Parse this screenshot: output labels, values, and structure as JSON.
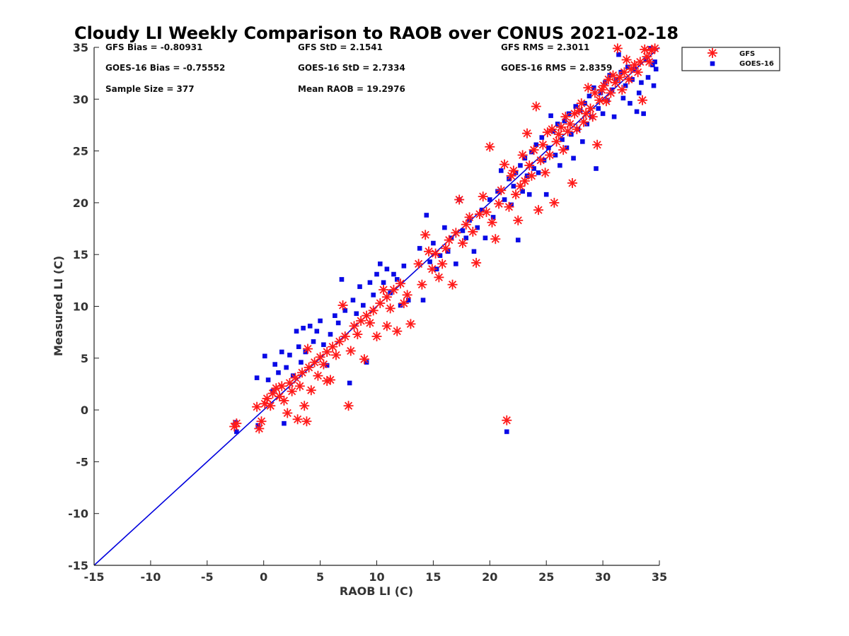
{
  "chart_data": {
    "type": "scatter",
    "title": "Cloudy LI Weekly Comparison to RAOB over CONUS 2021-02-18",
    "xlabel": "RAOB LI (C)",
    "ylabel": "Measured LI (C)",
    "xlim": [
      -15,
      35
    ],
    "ylim": [
      -15,
      35
    ],
    "xticks": [
      "-15",
      "-10",
      "-5",
      "0",
      "5",
      "10",
      "15",
      "20",
      "25",
      "30",
      "35"
    ],
    "yticks": [
      "35",
      "30",
      "25",
      "20",
      "15",
      "10",
      "5",
      "0",
      "-5",
      "-10",
      "-15"
    ],
    "grid": false,
    "legend_position": "outside-top-right",
    "colors": {
      "gfs": "#ff1a1a",
      "goes": "#0a0ae6",
      "reference_line": "#0000dd"
    },
    "reference_line": {
      "x": [
        -15,
        35
      ],
      "y": [
        -15,
        35
      ]
    },
    "stats": {
      "row1": [
        "GFS Bias = -0.80931",
        "GFS StD = 2.1541",
        "GFS RMS = 2.3011"
      ],
      "row2": [
        "GOES-16 Bias = -0.75552",
        "GOES-16 StD = 2.7334",
        "GOES-16 RMS = 2.8359"
      ],
      "row3": [
        "Sample Size = 377",
        "Mean RAOB = 19.2976"
      ]
    },
    "series": [
      {
        "name": "GFS",
        "marker": "asterisk",
        "points": [
          [
            -2.6,
            -1.6
          ],
          [
            -2.4,
            -1.3
          ],
          [
            -0.6,
            0.3
          ],
          [
            -0.4,
            -1.8
          ],
          [
            -0.2,
            -1.1
          ],
          [
            0.1,
            0.6
          ],
          [
            0.3,
            1.1
          ],
          [
            0.6,
            0.4
          ],
          [
            0.8,
            1.6
          ],
          [
            1.1,
            2.1
          ],
          [
            1.4,
            1.3
          ],
          [
            1.6,
            2.3
          ],
          [
            1.8,
            0.9
          ],
          [
            2.1,
            -0.3
          ],
          [
            2.3,
            2.6
          ],
          [
            2.5,
            1.8
          ],
          [
            2.8,
            3.1
          ],
          [
            3.0,
            -0.9
          ],
          [
            3.2,
            2.3
          ],
          [
            3.4,
            3.6
          ],
          [
            3.6,
            0.4
          ],
          [
            3.8,
            -1.1
          ],
          [
            4.0,
            4.1
          ],
          [
            4.2,
            1.9
          ],
          [
            4.5,
            4.6
          ],
          [
            4.8,
            3.3
          ],
          [
            5.0,
            5.1
          ],
          [
            5.3,
            4.4
          ],
          [
            5.6,
            5.6
          ],
          [
            5.9,
            2.9
          ],
          [
            6.1,
            6.1
          ],
          [
            6.4,
            5.3
          ],
          [
            6.7,
            6.6
          ],
          [
            7.0,
            10.1
          ],
          [
            7.2,
            7.1
          ],
          [
            7.5,
            0.4
          ],
          [
            7.7,
            5.7
          ],
          [
            8.0,
            8.1
          ],
          [
            8.3,
            7.3
          ],
          [
            8.6,
            8.6
          ],
          [
            8.9,
            4.9
          ],
          [
            9.1,
            9.1
          ],
          [
            9.4,
            8.4
          ],
          [
            9.7,
            9.6
          ],
          [
            10.0,
            7.1
          ],
          [
            10.3,
            10.3
          ],
          [
            10.6,
            11.6
          ],
          [
            10.9,
            10.9
          ],
          [
            11.2,
            9.8
          ],
          [
            11.5,
            11.6
          ],
          [
            11.8,
            7.6
          ],
          [
            12.1,
            12.2
          ],
          [
            12.4,
            10.3
          ],
          [
            12.7,
            11.1
          ],
          [
            13.0,
            8.3
          ],
          [
            13.7,
            14.1
          ],
          [
            14.0,
            12.1
          ],
          [
            14.3,
            16.9
          ],
          [
            14.6,
            15.3
          ],
          [
            14.9,
            13.6
          ],
          [
            15.2,
            15.1
          ],
          [
            15.5,
            12.8
          ],
          [
            15.8,
            14.1
          ],
          [
            16.1,
            15.6
          ],
          [
            16.4,
            16.4
          ],
          [
            16.7,
            12.1
          ],
          [
            17.0,
            17.1
          ],
          [
            17.3,
            20.3
          ],
          [
            17.6,
            16.1
          ],
          [
            17.9,
            17.9
          ],
          [
            18.2,
            18.6
          ],
          [
            18.5,
            17.2
          ],
          [
            18.8,
            14.2
          ],
          [
            19.1,
            18.9
          ],
          [
            19.4,
            20.6
          ],
          [
            19.7,
            19.1
          ],
          [
            20.0,
            25.4
          ],
          [
            20.2,
            18.1
          ],
          [
            20.5,
            16.5
          ],
          [
            20.8,
            19.9
          ],
          [
            21.0,
            21.2
          ],
          [
            21.3,
            23.7
          ],
          [
            21.5,
            -1.0
          ],
          [
            21.7,
            19.6
          ],
          [
            21.9,
            22.6
          ],
          [
            22.1,
            23.1
          ],
          [
            22.3,
            20.8
          ],
          [
            22.5,
            18.3
          ],
          [
            22.7,
            21.6
          ],
          [
            22.9,
            24.6
          ],
          [
            23.1,
            22.1
          ],
          [
            23.3,
            26.7
          ],
          [
            23.5,
            23.6
          ],
          [
            23.7,
            22.6
          ],
          [
            23.9,
            25.1
          ],
          [
            24.1,
            29.3
          ],
          [
            24.3,
            19.3
          ],
          [
            24.5,
            24.1
          ],
          [
            24.7,
            25.6
          ],
          [
            24.9,
            22.9
          ],
          [
            25.1,
            26.8
          ],
          [
            25.3,
            24.6
          ],
          [
            25.5,
            27.1
          ],
          [
            25.7,
            20.0
          ],
          [
            25.9,
            25.9
          ],
          [
            26.1,
            26.6
          ],
          [
            26.3,
            27.3
          ],
          [
            26.5,
            25.1
          ],
          [
            26.7,
            28.3
          ],
          [
            26.9,
            26.9
          ],
          [
            27.1,
            27.6
          ],
          [
            27.3,
            21.9
          ],
          [
            27.5,
            28.6
          ],
          [
            27.7,
            27.1
          ],
          [
            27.9,
            28.9
          ],
          [
            28.1,
            29.6
          ],
          [
            28.3,
            27.8
          ],
          [
            28.5,
            28.6
          ],
          [
            28.7,
            31.1
          ],
          [
            28.9,
            29.1
          ],
          [
            29.1,
            28.3
          ],
          [
            29.3,
            30.6
          ],
          [
            29.5,
            25.6
          ],
          [
            29.7,
            29.9
          ],
          [
            29.9,
            30.9
          ],
          [
            30.1,
            31.3
          ],
          [
            30.3,
            29.8
          ],
          [
            30.5,
            31.9
          ],
          [
            30.7,
            30.6
          ],
          [
            30.9,
            32.3
          ],
          [
            31.1,
            31.6
          ],
          [
            31.3,
            34.9
          ],
          [
            31.5,
            32.1
          ],
          [
            31.7,
            30.9
          ],
          [
            31.9,
            32.6
          ],
          [
            32.1,
            33.8
          ],
          [
            32.3,
            31.9
          ],
          [
            32.5,
            32.9
          ],
          [
            32.8,
            33.3
          ],
          [
            33.1,
            32.6
          ],
          [
            33.3,
            33.6
          ],
          [
            33.5,
            29.9
          ],
          [
            33.7,
            34.8
          ],
          [
            33.9,
            34.1
          ],
          [
            34.1,
            33.6
          ],
          [
            34.3,
            34.7
          ],
          [
            34.6,
            34.9
          ],
          [
            5.6,
            2.8
          ],
          [
            3.9,
            5.9
          ],
          [
            10.9,
            8.1
          ]
        ]
      },
      {
        "name": "GOES-16",
        "marker": "square",
        "points": [
          [
            -2.5,
            -1.2
          ],
          [
            -2.4,
            -2.1
          ],
          [
            -0.6,
            3.1
          ],
          [
            -0.5,
            -1.5
          ],
          [
            0.1,
            5.2
          ],
          [
            0.4,
            2.9
          ],
          [
            0.8,
            1.8
          ],
          [
            1.0,
            4.4
          ],
          [
            1.3,
            3.6
          ],
          [
            1.6,
            5.6
          ],
          [
            1.8,
            -1.3
          ],
          [
            2.0,
            4.1
          ],
          [
            2.3,
            5.3
          ],
          [
            2.6,
            3.3
          ],
          [
            2.9,
            7.6
          ],
          [
            3.1,
            6.1
          ],
          [
            3.3,
            4.6
          ],
          [
            3.5,
            7.9
          ],
          [
            3.7,
            5.6
          ],
          [
            4.1,
            8.1
          ],
          [
            4.4,
            6.6
          ],
          [
            4.7,
            7.6
          ],
          [
            5.0,
            8.6
          ],
          [
            5.3,
            6.3
          ],
          [
            5.6,
            4.3
          ],
          [
            5.9,
            7.3
          ],
          [
            6.3,
            9.1
          ],
          [
            6.6,
            8.4
          ],
          [
            6.9,
            12.6
          ],
          [
            7.2,
            9.6
          ],
          [
            7.6,
            2.6
          ],
          [
            7.9,
            10.6
          ],
          [
            8.2,
            9.3
          ],
          [
            8.5,
            11.9
          ],
          [
            8.8,
            10.1
          ],
          [
            9.1,
            4.6
          ],
          [
            9.4,
            12.3
          ],
          [
            9.7,
            11.1
          ],
          [
            10.0,
            13.1
          ],
          [
            10.3,
            14.1
          ],
          [
            10.6,
            12.3
          ],
          [
            10.9,
            13.6
          ],
          [
            11.2,
            11.3
          ],
          [
            11.5,
            13.1
          ],
          [
            11.8,
            12.6
          ],
          [
            12.1,
            10.1
          ],
          [
            12.4,
            13.9
          ],
          [
            12.8,
            10.6
          ],
          [
            13.8,
            15.6
          ],
          [
            14.1,
            10.6
          ],
          [
            14.4,
            18.8
          ],
          [
            14.7,
            14.3
          ],
          [
            15.0,
            16.1
          ],
          [
            15.3,
            13.6
          ],
          [
            15.6,
            14.9
          ],
          [
            16.0,
            17.6
          ],
          [
            16.3,
            15.3
          ],
          [
            16.6,
            16.6
          ],
          [
            17.0,
            14.1
          ],
          [
            17.3,
            20.3
          ],
          [
            17.6,
            17.3
          ],
          [
            17.9,
            16.6
          ],
          [
            18.2,
            18.3
          ],
          [
            18.6,
            15.3
          ],
          [
            18.9,
            17.6
          ],
          [
            19.3,
            19.3
          ],
          [
            19.6,
            16.6
          ],
          [
            20.0,
            20.3
          ],
          [
            20.3,
            18.6
          ],
          [
            20.7,
            21.1
          ],
          [
            21.0,
            23.1
          ],
          [
            21.3,
            20.3
          ],
          [
            21.5,
            -2.1
          ],
          [
            21.7,
            22.3
          ],
          [
            21.9,
            19.8
          ],
          [
            22.1,
            21.6
          ],
          [
            22.3,
            22.9
          ],
          [
            22.5,
            16.4
          ],
          [
            22.7,
            23.6
          ],
          [
            22.9,
            21.1
          ],
          [
            23.1,
            24.3
          ],
          [
            23.3,
            22.6
          ],
          [
            23.5,
            20.8
          ],
          [
            23.7,
            24.9
          ],
          [
            23.9,
            23.3
          ],
          [
            24.1,
            25.6
          ],
          [
            24.3,
            22.9
          ],
          [
            24.6,
            26.3
          ],
          [
            24.8,
            24.1
          ],
          [
            25.0,
            20.8
          ],
          [
            25.2,
            25.3
          ],
          [
            25.4,
            28.4
          ],
          [
            25.6,
            26.9
          ],
          [
            25.8,
            24.6
          ],
          [
            26.0,
            27.6
          ],
          [
            26.2,
            23.6
          ],
          [
            26.4,
            26.1
          ],
          [
            26.6,
            27.9
          ],
          [
            26.8,
            25.3
          ],
          [
            27.0,
            28.6
          ],
          [
            27.2,
            26.6
          ],
          [
            27.4,
            24.3
          ],
          [
            27.6,
            29.3
          ],
          [
            27.8,
            27.1
          ],
          [
            28.0,
            28.9
          ],
          [
            28.2,
            25.9
          ],
          [
            28.4,
            29.6
          ],
          [
            28.6,
            27.6
          ],
          [
            28.8,
            30.3
          ],
          [
            29.0,
            28.3
          ],
          [
            29.2,
            31.1
          ],
          [
            29.4,
            23.3
          ],
          [
            29.6,
            29.1
          ],
          [
            29.8,
            30.6
          ],
          [
            30.0,
            28.6
          ],
          [
            30.2,
            31.6
          ],
          [
            30.4,
            29.9
          ],
          [
            30.6,
            32.3
          ],
          [
            30.8,
            30.9
          ],
          [
            31.0,
            28.3
          ],
          [
            31.2,
            31.9
          ],
          [
            31.4,
            34.3
          ],
          [
            31.6,
            32.6
          ],
          [
            31.8,
            30.1
          ],
          [
            32.0,
            31.3
          ],
          [
            32.2,
            33.1
          ],
          [
            32.4,
            29.6
          ],
          [
            32.6,
            31.9
          ],
          [
            32.8,
            32.9
          ],
          [
            33.0,
            28.8
          ],
          [
            33.2,
            30.6
          ],
          [
            33.4,
            31.6
          ],
          [
            33.6,
            28.6
          ],
          [
            33.8,
            33.8
          ],
          [
            34.0,
            32.1
          ],
          [
            34.2,
            34.9
          ],
          [
            34.4,
            33.3
          ],
          [
            34.5,
            31.3
          ],
          [
            34.6,
            33.6
          ],
          [
            34.7,
            32.9
          ]
        ]
      }
    ]
  }
}
